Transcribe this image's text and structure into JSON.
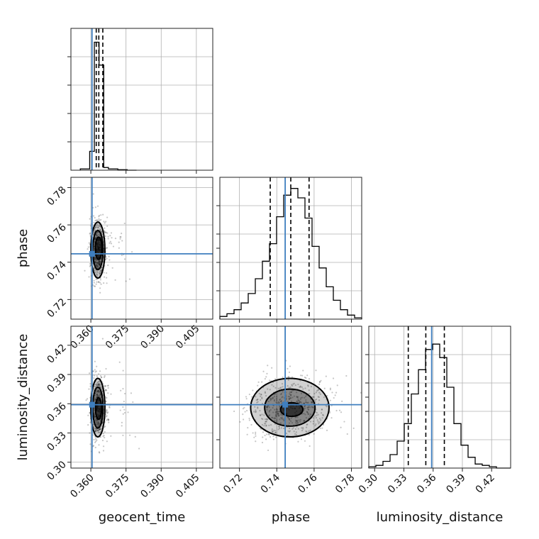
{
  "figure": {
    "type": "corner",
    "parameters": [
      "geocent_time",
      "phase",
      "luminosity_distance"
    ]
  },
  "colors": {
    "truth": "#3f7fbf",
    "histogram": "#000000",
    "density": "#000000",
    "grid": "#b0b0b0"
  },
  "chart_data": [
    {
      "type": "histogram",
      "panel": "geocent_time-marginal",
      "xlabel": "geocent_time",
      "xlim": [
        0.3515,
        0.412
      ],
      "bin_edges": [
        0.3555,
        0.3595,
        0.3615,
        0.3635,
        0.3655,
        0.3675,
        0.3715,
        0.3755,
        0.3795
      ],
      "counts": [
        0.01,
        0.14,
        0.95,
        0.78,
        0.02,
        0.01,
        0.004,
        0.0
      ],
      "quantiles": [
        0.3623,
        0.3634,
        0.3651
      ],
      "truth": 0.3605
    },
    {
      "type": "scatter",
      "panel": "geocent_time-vs-phase",
      "xlabel": "",
      "ylabel": "phase",
      "xlim": [
        0.3515,
        0.412
      ],
      "ylim": [
        0.7095,
        0.7855
      ],
      "xticks": [
        "0.360",
        "0.375",
        "0.390",
        "0.405"
      ],
      "yticks": [
        "0.72",
        "0.74",
        "0.76",
        "0.78"
      ],
      "truth": [
        0.3605,
        0.7445
      ],
      "contours": [
        {
          "level": "outer",
          "cx": 0.363,
          "cy": 0.7465,
          "rx": 0.003,
          "ry": 0.015
        },
        {
          "level": "middle",
          "cx": 0.363,
          "cy": 0.7465,
          "rx": 0.0022,
          "ry": 0.0105
        },
        {
          "level": "inner",
          "cx": 0.3633,
          "cy": 0.7475,
          "rx": 0.0014,
          "ry": 0.006
        }
      ]
    },
    {
      "type": "scatter",
      "panel": "geocent_time-vs-luminosity_distance",
      "xlabel": "geocent_time",
      "ylabel": "luminosity_distance",
      "xlim": [
        0.3515,
        0.412
      ],
      "ylim": [
        0.294,
        0.4395
      ],
      "xticks": [
        "0.360",
        "0.375",
        "0.390",
        "0.405"
      ],
      "yticks": [
        "0.30",
        "0.33",
        "0.36",
        "0.39",
        "0.42"
      ],
      "truth": [
        0.3605,
        0.359
      ],
      "contours": [
        {
          "level": "outer",
          "cx": 0.363,
          "cy": 0.356,
          "rx": 0.003,
          "ry": 0.03
        },
        {
          "level": "middle",
          "cx": 0.363,
          "cy": 0.356,
          "rx": 0.0022,
          "ry": 0.021
        },
        {
          "level": "inner",
          "cx": 0.3633,
          "cy": 0.355,
          "rx": 0.0013,
          "ry": 0.011
        }
      ]
    },
    {
      "type": "histogram",
      "panel": "phase-marginal",
      "xlabel": "",
      "xlim": [
        0.7095,
        0.7855
      ],
      "bin_edges": [
        0.7095,
        0.7133,
        0.7171,
        0.7209,
        0.7247,
        0.7285,
        0.7323,
        0.7361,
        0.7399,
        0.7437,
        0.7475,
        0.7513,
        0.7551,
        0.7589,
        0.7627,
        0.7665,
        0.7703,
        0.7741,
        0.7779,
        0.7817,
        0.7855
      ],
      "counts": [
        0.02,
        0.04,
        0.07,
        0.12,
        0.19,
        0.3,
        0.43,
        0.56,
        0.76,
        0.92,
        0.97,
        0.9,
        0.75,
        0.54,
        0.38,
        0.24,
        0.14,
        0.07,
        0.03,
        0.01
      ],
      "quantiles": [
        0.7365,
        0.7475,
        0.7573
      ],
      "truth": 0.7445
    },
    {
      "type": "scatter",
      "panel": "phase-vs-luminosity_distance",
      "xlabel": "phase",
      "ylabel": "",
      "xlim": [
        0.7095,
        0.7855
      ],
      "ylim": [
        0.294,
        0.4395
      ],
      "xticks": [
        "0.72",
        "0.74",
        "0.76",
        "0.78"
      ],
      "truth": [
        0.7445,
        0.359
      ],
      "contours": [
        {
          "level": "outer",
          "cx": 0.747,
          "cy": 0.356,
          "rx": 0.021,
          "ry": 0.03
        },
        {
          "level": "middle",
          "cx": 0.747,
          "cy": 0.356,
          "rx": 0.0135,
          "ry": 0.019
        },
        {
          "level": "inner",
          "cx": 0.748,
          "cy": 0.354,
          "rx": 0.006,
          "ry": 0.007
        }
      ]
    },
    {
      "type": "histogram",
      "panel": "luminosity_distance-marginal",
      "xlabel": "luminosity_distance",
      "xlim": [
        0.294,
        0.4395
      ],
      "xticks": [
        "0.30",
        "0.33",
        "0.36",
        "0.39",
        "0.42"
      ],
      "bin_edges": [
        0.294,
        0.30128,
        0.30855,
        0.31583,
        0.3231,
        0.33038,
        0.33765,
        0.34493,
        0.3522,
        0.35948,
        0.36675,
        0.37403,
        0.3813,
        0.38858,
        0.39585,
        0.40313,
        0.4104,
        0.41768,
        0.42495,
        0.43223,
        0.4395
      ],
      "counts": [
        0.01,
        0.02,
        0.05,
        0.1,
        0.2,
        0.33,
        0.55,
        0.73,
        0.88,
        0.92,
        0.82,
        0.6,
        0.33,
        0.17,
        0.08,
        0.03,
        0.02,
        0.01,
        0.0,
        0.0
      ],
      "quantiles": [
        0.3345,
        0.3525,
        0.3715
      ],
      "truth": 0.3585
    }
  ]
}
